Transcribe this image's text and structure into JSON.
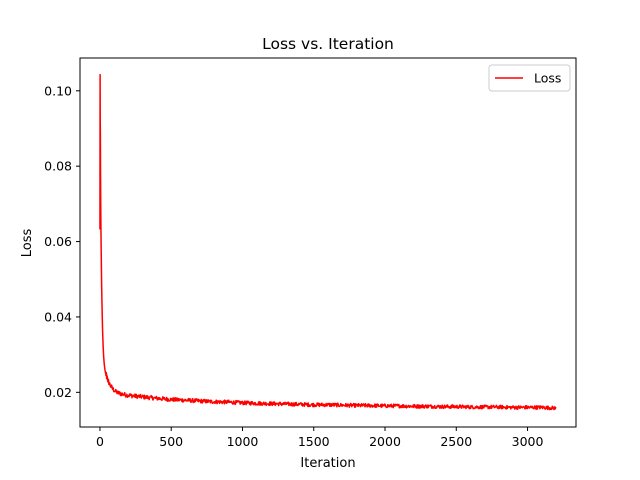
{
  "chart_data": {
    "type": "line",
    "title": "Loss vs. Iteration",
    "xlabel": "Iteration",
    "ylabel": "Loss",
    "xlim": [
      -140,
      3340
    ],
    "ylim": [
      0.0108,
      0.1087
    ],
    "xticks": [
      0,
      500,
      1000,
      1500,
      2000,
      2500,
      3000
    ],
    "yticks": [
      0.02,
      0.04,
      0.06,
      0.08,
      0.1
    ],
    "xtick_labels": [
      "0",
      "500",
      "1000",
      "1500",
      "2000",
      "2500",
      "3000"
    ],
    "ytick_labels": [
      "0.02",
      "0.04",
      "0.06",
      "0.08",
      "0.10"
    ],
    "grid": false,
    "legend": {
      "position": "top-right",
      "entries": [
        "Loss"
      ]
    },
    "series": [
      {
        "name": "Loss",
        "color": "#ff0000",
        "x": [
          0,
          1,
          2,
          3,
          4,
          5,
          6,
          8,
          10,
          12,
          15,
          18,
          22,
          26,
          30,
          35,
          40,
          50,
          60,
          75,
          90,
          110,
          130,
          160,
          200,
          250,
          300,
          400,
          500,
          600,
          700,
          800,
          900,
          1000,
          1100,
          1200,
          1300,
          1400,
          1500,
          1600,
          1700,
          1800,
          1900,
          2000,
          2100,
          2200,
          2300,
          2400,
          2500,
          2600,
          2700,
          2800,
          2900,
          3000,
          3100,
          3200
        ],
        "y": [
          0.0632,
          0.1043,
          0.092,
          0.088,
          0.0785,
          0.072,
          0.067,
          0.0595,
          0.0535,
          0.048,
          0.042,
          0.037,
          0.0325,
          0.0295,
          0.0275,
          0.026,
          0.025,
          0.0238,
          0.0228,
          0.0217,
          0.0209,
          0.0202,
          0.0198,
          0.0195,
          0.0192,
          0.019,
          0.0188,
          0.0184,
          0.0181,
          0.0179,
          0.0177,
          0.0175,
          0.0174,
          0.0172,
          0.0171,
          0.017,
          0.0169,
          0.0168,
          0.0167,
          0.0167,
          0.0166,
          0.0165,
          0.0165,
          0.0164,
          0.0164,
          0.0163,
          0.0163,
          0.0162,
          0.0162,
          0.0161,
          0.0161,
          0.0161,
          0.016,
          0.016,
          0.016,
          0.0158
        ],
        "noise_amplitude": 0.0006
      }
    ]
  }
}
